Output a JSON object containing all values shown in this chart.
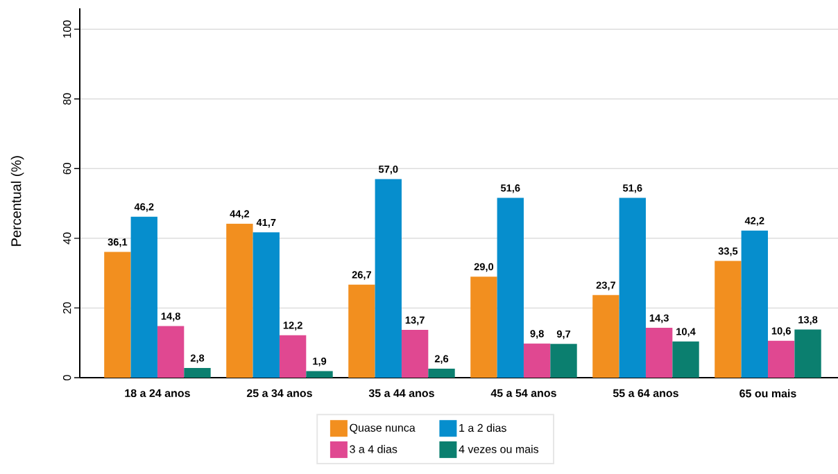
{
  "chart_data": {
    "type": "bar",
    "ylabel": "Percentual (%)",
    "categories": [
      "18 a 24 anos",
      "25 a 34 anos",
      "35 a 44 anos",
      "45 a 54 anos",
      "55 a 64 anos",
      "65 ou mais"
    ],
    "series": [
      {
        "name": "Quase nunca",
        "color": "#f28f1f",
        "values": [
          36.1,
          44.2,
          26.7,
          29.0,
          23.7,
          33.5
        ],
        "value_labels": [
          "36,1",
          "44,2",
          "26,7",
          "29,0",
          "23,7",
          "33,5"
        ]
      },
      {
        "name": "1 a 2 dias",
        "color": "#068ecd",
        "values": [
          46.2,
          41.7,
          57.0,
          51.6,
          51.6,
          42.2
        ],
        "value_labels": [
          "46,2",
          "41,7",
          "57,0",
          "51,6",
          "51,6",
          "42,2"
        ]
      },
      {
        "name": "3 a 4 dias",
        "color": "#e04891",
        "values": [
          14.8,
          12.2,
          13.7,
          9.8,
          14.3,
          10.6
        ],
        "value_labels": [
          "14,8",
          "12,2",
          "13,7",
          "9,8",
          "14,3",
          "10,6"
        ]
      },
      {
        "name": "4 vezes ou mais",
        "color": "#0b7f6f",
        "values": [
          2.8,
          1.9,
          2.6,
          9.7,
          10.4,
          13.8
        ],
        "value_labels": [
          "2,8",
          "1,9",
          "2,6",
          "9,7",
          "10,4",
          "13,8"
        ]
      }
    ],
    "ylim": [
      0,
      106
    ],
    "yticks": [
      0,
      20,
      40,
      60,
      80,
      100
    ],
    "grid": "y",
    "legend": "bottom"
  }
}
